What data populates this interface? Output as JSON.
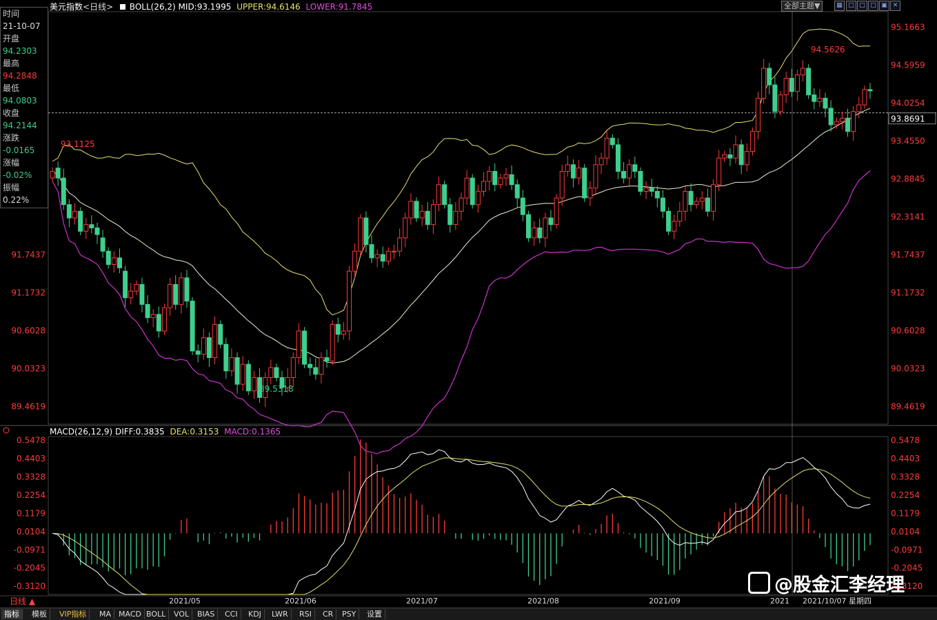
{
  "header": {
    "title": "美元指数",
    "period": "<日线>",
    "boll": "BOLL(26,2)",
    "mid": "MID:93.1995",
    "upper": "UPPER:94.6146",
    "lower": "LOWER:91.7845"
  },
  "controls": {
    "dropdown": "全部主题▼",
    "icons": [
      "grid-icon",
      "window-icon",
      "window2-icon",
      "window3-icon",
      "window4-icon",
      "close-icon"
    ]
  },
  "info_panel": {
    "time_label": "时间",
    "time_value": "21-10-07",
    "open_label": "开盘",
    "open_value": "94.2303",
    "high_label": "最高",
    "high_value": "94.2848",
    "low_label": "最低",
    "low_value": "94.0803",
    "close_label": "收盘",
    "close_value": "94.2144",
    "change_label": "涨跌",
    "change_value": "-0.0165",
    "pct_label": "涨幅",
    "pct_value": "-0.02%",
    "amp_label": "振幅",
    "amp_value": "0.22%"
  },
  "price_axis": [
    "95.1663",
    "94.5959",
    "94.0254",
    "93.4550",
    "92.8845",
    "92.3141",
    "91.7437",
    "91.1732",
    "90.6028",
    "90.0323",
    "89.4619"
  ],
  "current_price": "93.8691",
  "annotations": {
    "high_marker": "94.5626",
    "left_high": "93.1125",
    "low_marker": "89.5318"
  },
  "macd_header": {
    "name": "MACD(26,12,9)",
    "diff": "DIFF:0.3835",
    "dea": "DEA:0.3153",
    "macd": "MACD:0.1365"
  },
  "macd_axis": [
    "0.5478",
    "0.4403",
    "0.3328",
    "0.2254",
    "0.1179",
    "0.0104",
    "-0.0971",
    "-0.2045",
    "-0.3120"
  ],
  "date_axis": [
    "2021/05",
    "2021/06",
    "2021/07",
    "2021/08",
    "2021/09",
    "2021",
    "2021/10/07 星期四"
  ],
  "day_button": "日线 ▲",
  "tabs": [
    "指标",
    "模板",
    "VIP指标",
    "MA",
    "MACD",
    "BOLL",
    "VOL",
    "BIAS",
    "CCI",
    "KDJ",
    "LWR",
    "RSI",
    "CR",
    "PSY",
    "设置"
  ],
  "watermark": "@股金汇李经理",
  "colors": {
    "up": "#ff3b3b",
    "down": "#3ecf8e",
    "upper": "#e8e070",
    "mid": "#f0f0d0",
    "lower": "#cc33cc",
    "dea": "#e8e070",
    "diff": "#ffffff"
  },
  "chart_data": {
    "type": "candlestick",
    "title": "美元指数",
    "y_range": [
      89.2,
      95.4
    ],
    "candles_open_close": [
      [
        92.9,
        93.0
      ],
      [
        93.05,
        92.9
      ],
      [
        92.9,
        92.5
      ],
      [
        92.5,
        92.3
      ],
      [
        92.3,
        92.4
      ],
      [
        92.4,
        92.1
      ],
      [
        92.1,
        92.2
      ],
      [
        92.2,
        92.15
      ],
      [
        92.15,
        92.05
      ],
      [
        92.0,
        91.8
      ],
      [
        91.8,
        91.6
      ],
      [
        91.6,
        91.7
      ],
      [
        91.7,
        91.55
      ],
      [
        91.5,
        91.1
      ],
      [
        91.1,
        91.2
      ],
      [
        91.2,
        91.3
      ],
      [
        91.3,
        91.0
      ],
      [
        91.0,
        90.8
      ],
      [
        90.8,
        90.85
      ],
      [
        90.85,
        90.6
      ],
      [
        90.6,
        90.95
      ],
      [
        90.95,
        91.3
      ],
      [
        91.3,
        91.0
      ],
      [
        91.0,
        91.4
      ],
      [
        91.4,
        91.05
      ],
      [
        91.05,
        90.3
      ],
      [
        90.3,
        90.25
      ],
      [
        90.25,
        90.5
      ],
      [
        90.5,
        90.2
      ],
      [
        90.2,
        90.7
      ],
      [
        90.7,
        90.4
      ],
      [
        90.4,
        90.0
      ],
      [
        90.0,
        90.2
      ],
      [
        90.2,
        89.8
      ],
      [
        89.8,
        90.1
      ],
      [
        90.1,
        89.7
      ],
      [
        89.7,
        89.9
      ],
      [
        89.9,
        89.6
      ],
      [
        89.6,
        89.9
      ],
      [
        89.9,
        90.05
      ],
      [
        90.05,
        89.9
      ],
      [
        89.9,
        89.75
      ],
      [
        89.75,
        89.9
      ],
      [
        89.9,
        90.2
      ],
      [
        90.2,
        90.6
      ],
      [
        90.6,
        90.1
      ],
      [
        90.1,
        90.05
      ],
      [
        90.05,
        89.95
      ],
      [
        89.95,
        90.2
      ],
      [
        90.2,
        90.15
      ],
      [
        90.15,
        90.7
      ],
      [
        90.7,
        90.55
      ],
      [
        90.55,
        90.6
      ],
      [
        90.6,
        91.5
      ],
      [
        91.5,
        91.8
      ],
      [
        91.8,
        92.3
      ],
      [
        92.3,
        91.9
      ],
      [
        91.9,
        91.7
      ],
      [
        91.7,
        91.75
      ],
      [
        91.75,
        91.65
      ],
      [
        91.65,
        91.8
      ],
      [
        91.8,
        91.8
      ],
      [
        91.8,
        92.0
      ],
      [
        92.0,
        92.3
      ],
      [
        92.3,
        92.55
      ],
      [
        92.55,
        92.3
      ],
      [
        92.3,
        92.4
      ],
      [
        92.4,
        92.2
      ],
      [
        92.2,
        92.5
      ],
      [
        92.5,
        92.8
      ],
      [
        92.8,
        92.5
      ],
      [
        92.5,
        92.2
      ],
      [
        92.2,
        92.4
      ],
      [
        92.4,
        92.6
      ],
      [
        92.6,
        92.9
      ],
      [
        92.9,
        92.5
      ],
      [
        92.5,
        92.7
      ],
      [
        92.7,
        92.85
      ],
      [
        92.85,
        93.0
      ],
      [
        93.0,
        92.8
      ],
      [
        92.8,
        92.9
      ],
      [
        92.9,
        92.95
      ],
      [
        92.95,
        92.8
      ],
      [
        92.8,
        92.6
      ],
      [
        92.6,
        92.35
      ],
      [
        92.35,
        92.0
      ],
      [
        92.0,
        92.15
      ],
      [
        92.15,
        92.0
      ],
      [
        92.0,
        92.3
      ],
      [
        92.3,
        92.2
      ],
      [
        92.2,
        92.6
      ],
      [
        92.6,
        93.0
      ],
      [
        93.0,
        93.1
      ],
      [
        93.1,
        92.9
      ],
      [
        92.9,
        93.05
      ],
      [
        93.05,
        92.6
      ],
      [
        92.6,
        92.75
      ],
      [
        92.75,
        93.1
      ],
      [
        93.1,
        93.2
      ],
      [
        93.2,
        93.5
      ],
      [
        93.5,
        93.4
      ],
      [
        93.4,
        93.0
      ],
      [
        93.0,
        92.9
      ],
      [
        92.9,
        93.1
      ],
      [
        93.1,
        93.0
      ],
      [
        93.0,
        92.7
      ],
      [
        92.7,
        92.75
      ],
      [
        92.75,
        92.7
      ],
      [
        92.7,
        92.6
      ],
      [
        92.6,
        92.4
      ],
      [
        92.4,
        92.1
      ],
      [
        92.1,
        92.25
      ],
      [
        92.25,
        92.4
      ],
      [
        92.4,
        92.7
      ],
      [
        92.7,
        92.5
      ],
      [
        92.5,
        92.55
      ],
      [
        92.55,
        92.6
      ],
      [
        92.6,
        92.4
      ],
      [
        92.4,
        92.8
      ],
      [
        92.8,
        93.2
      ],
      [
        93.2,
        93.25
      ],
      [
        93.25,
        93.2
      ],
      [
        93.2,
        93.4
      ],
      [
        93.4,
        93.1
      ],
      [
        93.1,
        93.3
      ],
      [
        93.3,
        93.6
      ],
      [
        93.6,
        94.1
      ],
      [
        94.1,
        94.55
      ],
      [
        94.55,
        94.3
      ],
      [
        94.3,
        93.9
      ],
      [
        93.9,
        94.15
      ],
      [
        94.15,
        94.4
      ],
      [
        94.4,
        94.2
      ],
      [
        94.2,
        94.45
      ],
      [
        94.45,
        94.55
      ],
      [
        94.55,
        94.15
      ],
      [
        94.15,
        94.05
      ],
      [
        94.05,
        94.1
      ],
      [
        94.1,
        93.95
      ],
      [
        93.95,
        93.7
      ],
      [
        93.7,
        93.75
      ],
      [
        93.75,
        93.8
      ],
      [
        93.8,
        93.6
      ],
      [
        93.6,
        93.9
      ],
      [
        93.9,
        94.0
      ],
      [
        94.0,
        94.23
      ],
      [
        94.23,
        94.21
      ]
    ],
    "indicator": {
      "name": "MACD(26,12,9)",
      "diff": 0.3835,
      "dea": 0.3153,
      "macd": 0.1365,
      "y_range": [
        -0.36,
        0.57
      ]
    }
  }
}
